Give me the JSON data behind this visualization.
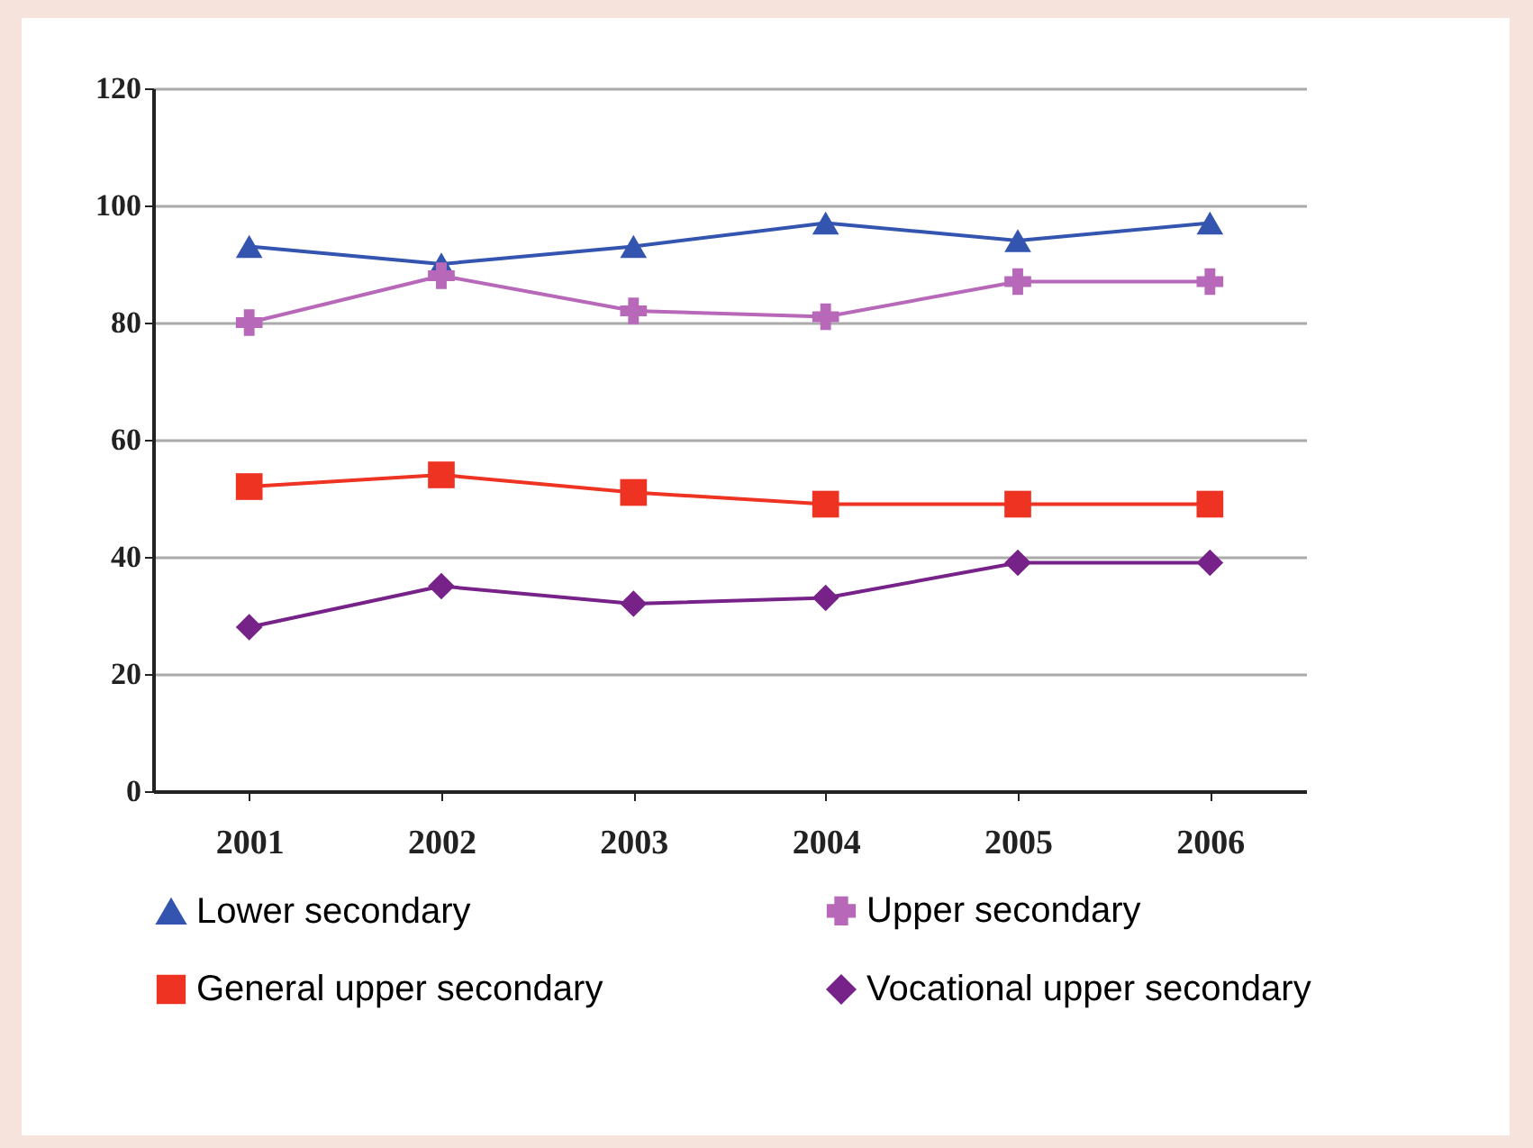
{
  "chart_data": {
    "type": "line",
    "categories": [
      "2001",
      "2002",
      "2003",
      "2004",
      "2005",
      "2006"
    ],
    "series": [
      {
        "name": "Lower secondary",
        "color": "#3355b0",
        "marker": "triangle",
        "values": [
          93,
          90,
          93,
          97,
          94,
          97
        ]
      },
      {
        "name": "Upper secondary",
        "color": "#b868b8",
        "marker": "cross",
        "values": [
          80,
          88,
          82,
          81,
          87,
          87
        ]
      },
      {
        "name": "General upper secondary",
        "color": "#ee3322",
        "marker": "square",
        "values": [
          52,
          54,
          51,
          49,
          49,
          49
        ]
      },
      {
        "name": "Vocational upper secondary",
        "color": "#772288",
        "marker": "diamond",
        "values": [
          28,
          35,
          32,
          33,
          39,
          39
        ]
      }
    ],
    "ylim": [
      0,
      120
    ],
    "yticks": [
      0,
      20,
      40,
      60,
      80,
      100,
      120
    ],
    "grid": "y",
    "legend": "bottom"
  }
}
